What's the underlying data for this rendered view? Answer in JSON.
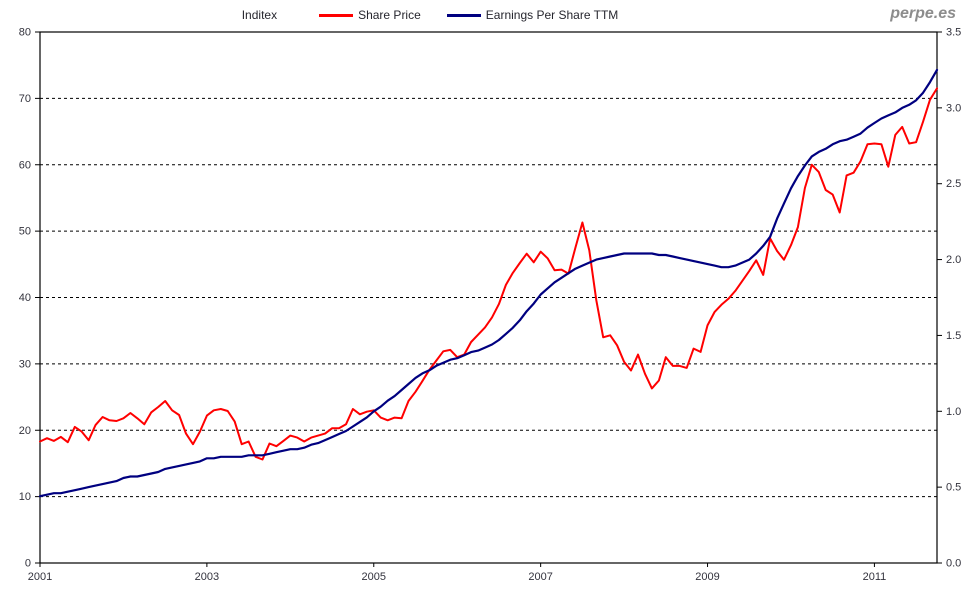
{
  "header": {
    "series_label": "Inditex",
    "watermark": "perpe.es",
    "legend": [
      {
        "label": "Share Price",
        "color": "#ff0000"
      },
      {
        "label": "Earnings Per Share TTM",
        "color": "#000080"
      }
    ]
  },
  "chart_data": {
    "type": "line",
    "title": "Inditex",
    "frequency": "monthly",
    "x_start": "2001-01",
    "x_end": "2011-10",
    "x_tick_labels": [
      "2001",
      "2003",
      "2005",
      "2007",
      "2009",
      "2011"
    ],
    "grid": "horizontal-dashed",
    "legend_position": "top",
    "left_axis": {
      "min": 0,
      "max": 80,
      "step": 10,
      "ticks": [
        0,
        10,
        20,
        30,
        40,
        50,
        60,
        70,
        80
      ]
    },
    "right_axis": {
      "min": 0.0,
      "max": 3.5,
      "step": 0.5,
      "ticks": [
        0.0,
        0.5,
        1.0,
        1.5,
        2.0,
        2.5,
        3.0,
        3.5
      ]
    },
    "series": [
      {
        "name": "Share Price",
        "axis": "left",
        "color": "#ff0000",
        "values": [
          18.3,
          18.8,
          18.4,
          19.0,
          18.2,
          20.5,
          19.8,
          18.5,
          20.8,
          22.0,
          21.5,
          21.4,
          21.8,
          22.6,
          21.8,
          20.9,
          22.7,
          23.5,
          24.4,
          23.0,
          22.3,
          19.5,
          17.9,
          19.8,
          22.2,
          23.0,
          23.2,
          22.9,
          21.3,
          17.9,
          18.3,
          16.0,
          15.6,
          18.0,
          17.6,
          18.4,
          19.2,
          18.9,
          18.3,
          18.9,
          19.2,
          19.5,
          20.3,
          20.3,
          20.9,
          23.2,
          22.4,
          22.8,
          23.0,
          21.9,
          21.5,
          21.9,
          21.8,
          24.4,
          25.8,
          27.4,
          29.1,
          30.5,
          31.9,
          32.1,
          31.0,
          31.4,
          33.3,
          34.4,
          35.5,
          37.0,
          39.0,
          41.9,
          43.7,
          45.2,
          46.6,
          45.3,
          46.9,
          45.9,
          44.1,
          44.2,
          43.6,
          47.5,
          51.3,
          47.1,
          39.6,
          34.0,
          34.3,
          32.8,
          30.3,
          29.0,
          31.4,
          28.5,
          26.3,
          27.5,
          31.0,
          29.7,
          29.7,
          29.4,
          32.3,
          31.8,
          35.8,
          37.8,
          38.9,
          39.8,
          41.0,
          42.5,
          44.0,
          45.6,
          43.4,
          48.9,
          47.0,
          45.7,
          47.9,
          50.6,
          56.5,
          60.0,
          58.9,
          56.2,
          55.5,
          52.8,
          58.4,
          58.8,
          60.5,
          63.1,
          63.2,
          63.1,
          59.7,
          64.5,
          65.7,
          63.2,
          63.4,
          66.5,
          69.8,
          71.5
        ]
      },
      {
        "name": "Earnings Per Share TTM",
        "axis": "right",
        "color": "#000080",
        "values": [
          0.44,
          0.45,
          0.46,
          0.46,
          0.47,
          0.48,
          0.49,
          0.5,
          0.51,
          0.52,
          0.53,
          0.54,
          0.56,
          0.57,
          0.57,
          0.58,
          0.59,
          0.6,
          0.62,
          0.63,
          0.64,
          0.65,
          0.66,
          0.67,
          0.69,
          0.69,
          0.7,
          0.7,
          0.7,
          0.7,
          0.71,
          0.71,
          0.71,
          0.72,
          0.73,
          0.74,
          0.75,
          0.75,
          0.76,
          0.78,
          0.79,
          0.81,
          0.83,
          0.85,
          0.87,
          0.9,
          0.93,
          0.96,
          1.0,
          1.03,
          1.07,
          1.1,
          1.14,
          1.18,
          1.22,
          1.25,
          1.27,
          1.3,
          1.32,
          1.34,
          1.35,
          1.37,
          1.39,
          1.4,
          1.42,
          1.44,
          1.47,
          1.51,
          1.55,
          1.6,
          1.66,
          1.71,
          1.77,
          1.81,
          1.85,
          1.88,
          1.91,
          1.94,
          1.96,
          1.98,
          2.0,
          2.01,
          2.02,
          2.03,
          2.04,
          2.04,
          2.04,
          2.04,
          2.04,
          2.03,
          2.03,
          2.02,
          2.01,
          2.0,
          1.99,
          1.98,
          1.97,
          1.96,
          1.95,
          1.95,
          1.96,
          1.98,
          2.0,
          2.04,
          2.09,
          2.15,
          2.27,
          2.37,
          2.47,
          2.55,
          2.62,
          2.68,
          2.71,
          2.73,
          2.76,
          2.78,
          2.79,
          2.81,
          2.83,
          2.87,
          2.9,
          2.93,
          2.95,
          2.97,
          3.0,
          3.02,
          3.05,
          3.1,
          3.17,
          3.25
        ]
      }
    ]
  }
}
